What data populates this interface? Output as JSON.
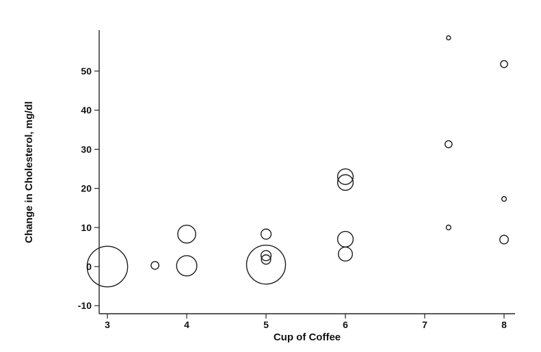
{
  "chart_data": {
    "type": "scatter",
    "title": "",
    "xlabel": "Cup of Coffee",
    "ylabel": "Change in Cholesterol, mg/dl",
    "xlim": [
      2.9,
      8.1
    ],
    "ylim": [
      -12,
      60
    ],
    "x_ticks": [
      "3",
      "4",
      "5",
      "6",
      "7",
      "8"
    ],
    "y_ticks": [
      "-10",
      "0",
      "10",
      "20",
      "30",
      "40",
      "50"
    ],
    "grid": false,
    "legend": "none",
    "bubble_sizing": "relative weight",
    "points": [
      {
        "x": 3.0,
        "y": 0.0,
        "size": 5.2
      },
      {
        "x": 3.6,
        "y": 0.3,
        "size": 1.0
      },
      {
        "x": 4.0,
        "y": 8.3,
        "size": 2.3
      },
      {
        "x": 4.0,
        "y": 0.2,
        "size": 2.6
      },
      {
        "x": 5.0,
        "y": 8.3,
        "size": 1.3
      },
      {
        "x": 5.0,
        "y": 2.8,
        "size": 1.3
      },
      {
        "x": 5.0,
        "y": 1.8,
        "size": 1.2
      },
      {
        "x": 5.0,
        "y": 0.5,
        "size": 5.0
      },
      {
        "x": 6.0,
        "y": 23.0,
        "size": 2.0
      },
      {
        "x": 6.0,
        "y": 21.5,
        "size": 2.0
      },
      {
        "x": 6.0,
        "y": 7.0,
        "size": 2.0
      },
      {
        "x": 6.0,
        "y": 3.2,
        "size": 1.8
      },
      {
        "x": 7.3,
        "y": 58.5,
        "size": 0.5
      },
      {
        "x": 7.3,
        "y": 31.3,
        "size": 0.9
      },
      {
        "x": 7.3,
        "y": 10.0,
        "size": 0.6
      },
      {
        "x": 8.0,
        "y": 51.8,
        "size": 0.9
      },
      {
        "x": 8.0,
        "y": 17.3,
        "size": 0.6
      },
      {
        "x": 8.0,
        "y": 6.9,
        "size": 1.1
      }
    ]
  }
}
